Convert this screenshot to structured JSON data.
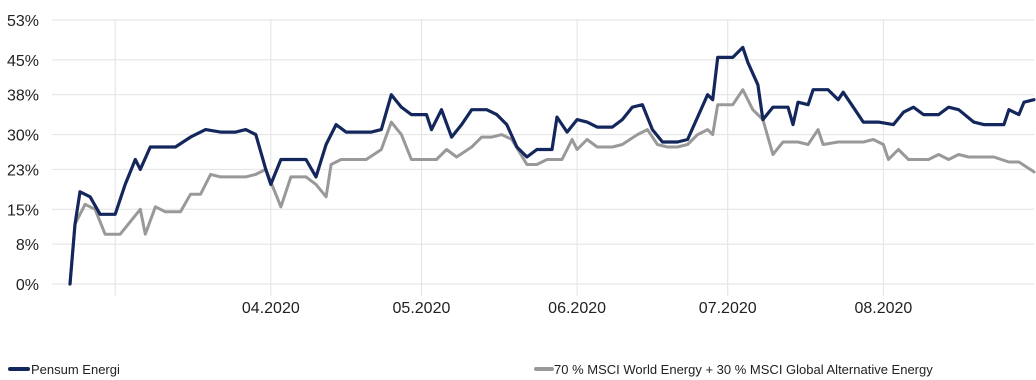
{
  "chart_data": {
    "type": "line",
    "title": "",
    "xlabel": "",
    "ylabel": "",
    "ylim": [
      0,
      53
    ],
    "y_ticks": [
      0,
      8,
      15,
      23,
      30,
      38,
      45,
      53
    ],
    "y_tick_labels": [
      "0%",
      "8%",
      "15%",
      "23%",
      "30%",
      "38%",
      "45%",
      "53%"
    ],
    "x_ticks": [
      {
        "label": "04.2020",
        "x": "2020-04-01"
      },
      {
        "label": "05.2020",
        "x": "2020-05-01"
      },
      {
        "label": "06.2020",
        "x": "2020-06-01"
      },
      {
        "label": "07.2020",
        "x": "2020-07-01"
      },
      {
        "label": "08.2020",
        "x": "2020-08-01"
      }
    ],
    "x_range": [
      "2020-02-21",
      "2020-08-31"
    ],
    "grid": "vertical",
    "legend_placement": "bottom",
    "series": [
      {
        "name": "Pensum Energi",
        "color": "#14275c",
        "points": [
          [
            "2020-02-21",
            0
          ],
          [
            "2020-02-22",
            12
          ],
          [
            "2020-02-23",
            18.5
          ],
          [
            "2020-02-25",
            17.5
          ],
          [
            "2020-02-27",
            14
          ],
          [
            "2020-03-01",
            14
          ],
          [
            "2020-03-03",
            20
          ],
          [
            "2020-03-05",
            25
          ],
          [
            "2020-03-06",
            23
          ],
          [
            "2020-03-08",
            27.5
          ],
          [
            "2020-03-11",
            27.5
          ],
          [
            "2020-03-13",
            27.5
          ],
          [
            "2020-03-16",
            29.5
          ],
          [
            "2020-03-19",
            31
          ],
          [
            "2020-03-22",
            30.5
          ],
          [
            "2020-03-25",
            30.5
          ],
          [
            "2020-03-27",
            31
          ],
          [
            "2020-03-29",
            30
          ],
          [
            "2020-03-31",
            23
          ],
          [
            "2020-04-01",
            20
          ],
          [
            "2020-04-03",
            25
          ],
          [
            "2020-04-06",
            25
          ],
          [
            "2020-04-08",
            25
          ],
          [
            "2020-04-10",
            21.5
          ],
          [
            "2020-04-12",
            28
          ],
          [
            "2020-04-14",
            32
          ],
          [
            "2020-04-16",
            30.5
          ],
          [
            "2020-04-19",
            30.5
          ],
          [
            "2020-04-21",
            30.5
          ],
          [
            "2020-04-23",
            31
          ],
          [
            "2020-04-25",
            38
          ],
          [
            "2020-04-27",
            35.5
          ],
          [
            "2020-04-29",
            34
          ],
          [
            "2020-05-02",
            34
          ],
          [
            "2020-05-03",
            31
          ],
          [
            "2020-05-05",
            35
          ],
          [
            "2020-05-07",
            29.5
          ],
          [
            "2020-05-09",
            32
          ],
          [
            "2020-05-11",
            35
          ],
          [
            "2020-05-14",
            35
          ],
          [
            "2020-05-16",
            34
          ],
          [
            "2020-05-18",
            32
          ],
          [
            "2020-05-20",
            27.5
          ],
          [
            "2020-05-22",
            25.5
          ],
          [
            "2020-05-24",
            27
          ],
          [
            "2020-05-27",
            27
          ],
          [
            "2020-05-28",
            33.5
          ],
          [
            "2020-05-30",
            30.5
          ],
          [
            "2020-06-01",
            33
          ],
          [
            "2020-06-03",
            32.5
          ],
          [
            "2020-06-05",
            31.5
          ],
          [
            "2020-06-08",
            31.5
          ],
          [
            "2020-06-10",
            33
          ],
          [
            "2020-06-12",
            35.5
          ],
          [
            "2020-06-14",
            36
          ],
          [
            "2020-06-16",
            31
          ],
          [
            "2020-06-18",
            28.5
          ],
          [
            "2020-06-21",
            28.5
          ],
          [
            "2020-06-23",
            29
          ],
          [
            "2020-06-25",
            33.5
          ],
          [
            "2020-06-27",
            38
          ],
          [
            "2020-06-28",
            37
          ],
          [
            "2020-06-29",
            45.5
          ],
          [
            "2020-07-02",
            45.5
          ],
          [
            "2020-07-04",
            47.5
          ],
          [
            "2020-07-05",
            44.5
          ],
          [
            "2020-07-07",
            40
          ],
          [
            "2020-07-08",
            33
          ],
          [
            "2020-07-10",
            35.5
          ],
          [
            "2020-07-13",
            35.5
          ],
          [
            "2020-07-14",
            32
          ],
          [
            "2020-07-15",
            36.5
          ],
          [
            "2020-07-17",
            36
          ],
          [
            "2020-07-18",
            39
          ],
          [
            "2020-07-21",
            39
          ],
          [
            "2020-07-23",
            37
          ],
          [
            "2020-07-24",
            38.5
          ],
          [
            "2020-07-26",
            35.5
          ],
          [
            "2020-07-28",
            32.5
          ],
          [
            "2020-07-31",
            32.5
          ],
          [
            "2020-08-03",
            32
          ],
          [
            "2020-08-05",
            34.5
          ],
          [
            "2020-08-07",
            35.5
          ],
          [
            "2020-08-09",
            34
          ],
          [
            "2020-08-12",
            34
          ],
          [
            "2020-08-14",
            35.5
          ],
          [
            "2020-08-16",
            35
          ],
          [
            "2020-08-19",
            32.5
          ],
          [
            "2020-08-21",
            32
          ],
          [
            "2020-08-23",
            32
          ],
          [
            "2020-08-25",
            32
          ],
          [
            "2020-08-26",
            35
          ],
          [
            "2020-08-28",
            34
          ],
          [
            "2020-08-29",
            36.5
          ],
          [
            "2020-08-31",
            37
          ]
        ]
      },
      {
        "name": "70 % MSCI World Energy + 30 % MSCI Global Alternative Energy",
        "color": "#999999",
        "points": [
          [
            "2020-02-21",
            0
          ],
          [
            "2020-02-22",
            12
          ],
          [
            "2020-02-24",
            16
          ],
          [
            "2020-02-26",
            15
          ],
          [
            "2020-02-28",
            10
          ],
          [
            "2020-03-02",
            10
          ],
          [
            "2020-03-04",
            12.5
          ],
          [
            "2020-03-06",
            15
          ],
          [
            "2020-03-07",
            10
          ],
          [
            "2020-03-09",
            15.5
          ],
          [
            "2020-03-11",
            14.5
          ],
          [
            "2020-03-14",
            14.5
          ],
          [
            "2020-03-16",
            18
          ],
          [
            "2020-03-18",
            18
          ],
          [
            "2020-03-20",
            22
          ],
          [
            "2020-03-22",
            21.5
          ],
          [
            "2020-03-25",
            21.5
          ],
          [
            "2020-03-27",
            21.5
          ],
          [
            "2020-03-29",
            22
          ],
          [
            "2020-03-31",
            23
          ],
          [
            "2020-04-03",
            15.5
          ],
          [
            "2020-04-05",
            21.5
          ],
          [
            "2020-04-08",
            21.5
          ],
          [
            "2020-04-10",
            20
          ],
          [
            "2020-04-12",
            17.5
          ],
          [
            "2020-04-13",
            24
          ],
          [
            "2020-04-15",
            25
          ],
          [
            "2020-04-17",
            25
          ],
          [
            "2020-04-20",
            25
          ],
          [
            "2020-04-23",
            27
          ],
          [
            "2020-04-25",
            32.5
          ],
          [
            "2020-04-27",
            30
          ],
          [
            "2020-04-29",
            25
          ],
          [
            "2020-05-02",
            25
          ],
          [
            "2020-05-04",
            25
          ],
          [
            "2020-05-06",
            27
          ],
          [
            "2020-05-08",
            25.5
          ],
          [
            "2020-05-11",
            27.5
          ],
          [
            "2020-05-13",
            29.5
          ],
          [
            "2020-05-15",
            29.5
          ],
          [
            "2020-05-17",
            30
          ],
          [
            "2020-05-19",
            29
          ],
          [
            "2020-05-22",
            24
          ],
          [
            "2020-05-24",
            24
          ],
          [
            "2020-05-26",
            25
          ],
          [
            "2020-05-29",
            25
          ],
          [
            "2020-05-31",
            29
          ],
          [
            "2020-06-01",
            27
          ],
          [
            "2020-06-03",
            29
          ],
          [
            "2020-06-05",
            27.5
          ],
          [
            "2020-06-08",
            27.5
          ],
          [
            "2020-06-10",
            28
          ],
          [
            "2020-06-13",
            30
          ],
          [
            "2020-06-15",
            31
          ],
          [
            "2020-06-17",
            28
          ],
          [
            "2020-06-19",
            27.5
          ],
          [
            "2020-06-21",
            27.5
          ],
          [
            "2020-06-23",
            28
          ],
          [
            "2020-06-25",
            30
          ],
          [
            "2020-06-27",
            31
          ],
          [
            "2020-06-28",
            30
          ],
          [
            "2020-06-29",
            36
          ],
          [
            "2020-07-02",
            36
          ],
          [
            "2020-07-04",
            39
          ],
          [
            "2020-07-06",
            35
          ],
          [
            "2020-07-08",
            33
          ],
          [
            "2020-07-10",
            26
          ],
          [
            "2020-07-12",
            28.5
          ],
          [
            "2020-07-15",
            28.5
          ],
          [
            "2020-07-17",
            28
          ],
          [
            "2020-07-19",
            31
          ],
          [
            "2020-07-20",
            28
          ],
          [
            "2020-07-23",
            28.5
          ],
          [
            "2020-07-25",
            28.5
          ],
          [
            "2020-07-28",
            28.5
          ],
          [
            "2020-07-30",
            29
          ],
          [
            "2020-08-01",
            28
          ],
          [
            "2020-08-02",
            25
          ],
          [
            "2020-08-04",
            27
          ],
          [
            "2020-08-06",
            25
          ],
          [
            "2020-08-08",
            25
          ],
          [
            "2020-08-10",
            25
          ],
          [
            "2020-08-12",
            26
          ],
          [
            "2020-08-14",
            25
          ],
          [
            "2020-08-16",
            26
          ],
          [
            "2020-08-18",
            25.5
          ],
          [
            "2020-08-21",
            25.5
          ],
          [
            "2020-08-23",
            25.5
          ],
          [
            "2020-08-26",
            24.5
          ],
          [
            "2020-08-28",
            24.5
          ],
          [
            "2020-08-31",
            22.5
          ]
        ]
      }
    ]
  }
}
